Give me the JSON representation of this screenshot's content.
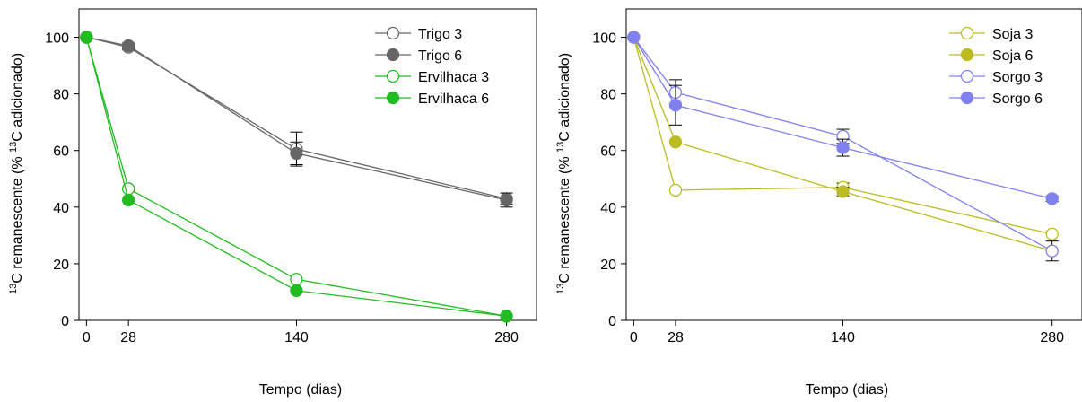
{
  "chart_data": [
    {
      "type": "line",
      "xlabel": "Tempo (dias)",
      "ylabel_prefix": "13",
      "ylabel_main": "C remanescente (%",
      "ylabel_sup2": "13",
      "ylabel_tail": "C adicionado)",
      "xticks": [
        0,
        28,
        140,
        280
      ],
      "yticks": [
        0,
        20,
        40,
        60,
        80,
        100
      ],
      "xlim": [
        -5,
        300
      ],
      "ylim": [
        0,
        110
      ],
      "legend_position": "top-right",
      "grid": false,
      "series": [
        {
          "name": "Trigo 3",
          "color": "#666666",
          "filled": false,
          "x": [
            0,
            28,
            140,
            280
          ],
          "y": [
            100,
            96.5,
            60.5,
            43
          ],
          "err": [
            0,
            1,
            6,
            2
          ]
        },
        {
          "name": "Trigo 6",
          "color": "#666666",
          "filled": true,
          "x": [
            0,
            28,
            140,
            280
          ],
          "y": [
            100,
            97,
            59,
            42.5
          ],
          "err": [
            0,
            1,
            4,
            2.5
          ]
        },
        {
          "name": "Ervilhaca 3",
          "color": "#22bb22",
          "filled": false,
          "x": [
            0,
            28,
            140,
            280
          ],
          "y": [
            100,
            46.5,
            14.5,
            1.5
          ],
          "err": [
            0,
            0,
            0,
            0
          ]
        },
        {
          "name": "Ervilhaca 6",
          "color": "#22bb22",
          "filled": true,
          "x": [
            0,
            28,
            140,
            280
          ],
          "y": [
            100,
            42.5,
            10.5,
            1.5
          ],
          "err": [
            0,
            0,
            0,
            0
          ]
        }
      ]
    },
    {
      "type": "line",
      "xlabel": "Tempo (dias)",
      "ylabel_prefix": "13",
      "ylabel_main": "C remanescente (%",
      "ylabel_sup2": "13",
      "ylabel_tail": "C adicionado)",
      "xticks": [
        0,
        28,
        140,
        280
      ],
      "yticks": [
        0,
        20,
        40,
        60,
        80,
        100
      ],
      "xlim": [
        -5,
        300
      ],
      "ylim": [
        0,
        110
      ],
      "legend_position": "top-right",
      "grid": false,
      "series": [
        {
          "name": "Soja 3",
          "color": "#bbbb22",
          "filled": false,
          "x": [
            0,
            28,
            140,
            280
          ],
          "y": [
            100,
            46,
            47,
            30.5
          ],
          "err": [
            0,
            0,
            1.5,
            0
          ]
        },
        {
          "name": "Soja 6",
          "color": "#bbbb22",
          "filled": true,
          "x": [
            0,
            28,
            140,
            280
          ],
          "y": [
            100,
            63,
            45.5,
            24.5
          ],
          "err": [
            0,
            0,
            1.5,
            0
          ]
        },
        {
          "name": "Sorgo 3",
          "color": "#8080ee",
          "filled": false,
          "x": [
            0,
            28,
            140,
            280
          ],
          "y": [
            100,
            80.5,
            65,
            24.5
          ],
          "err": [
            0,
            4.5,
            2.5,
            3.5
          ]
        },
        {
          "name": "Sorgo 6",
          "color": "#8080ee",
          "filled": true,
          "x": [
            0,
            28,
            140,
            280
          ],
          "y": [
            100,
            76,
            61,
            43
          ],
          "err": [
            0,
            7,
            3,
            1
          ]
        }
      ]
    }
  ]
}
